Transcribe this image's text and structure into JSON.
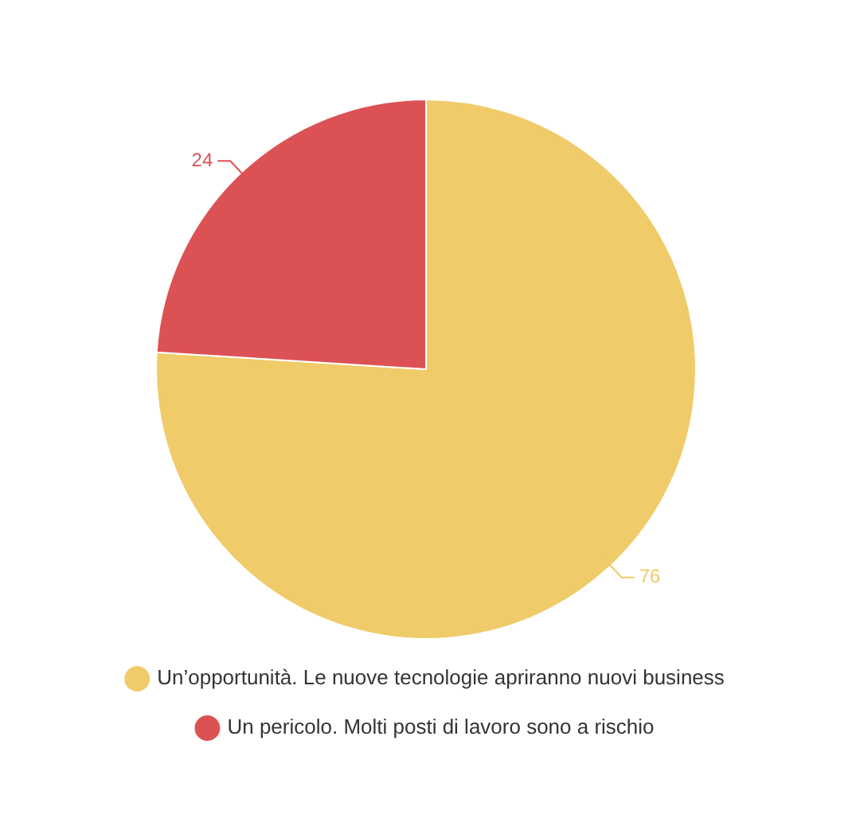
{
  "chart_data": {
    "type": "pie",
    "categories": [
      "Un’opportunità. Le nuove tecnologie apriranno nuovi business",
      "Un pericolo. Molti posti di lavoro sono a rischio"
    ],
    "values": [
      76,
      24
    ],
    "colors": [
      "#efcb6a",
      "#dc5254"
    ],
    "data_labels": true,
    "legend": "bottom"
  }
}
